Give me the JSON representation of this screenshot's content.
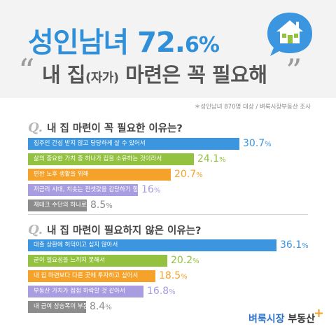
{
  "header": {
    "headline": "성인남녀 72.",
    "headline_pct": "6%",
    "subline_before": "내 집",
    "subline_small": "(자가)",
    "subline_after": " 마련은 꼭 필요해",
    "quote_open": "“",
    "quote_close": "”"
  },
  "source": "＊성인남녀 870명 대상 / 벼룩시장부동산 조사",
  "colors": {
    "blue": "#3b95df",
    "green": "#92c23f",
    "orange": "#f5a22b",
    "purple": "#a89de0",
    "gray": "#8c8c8c"
  },
  "chart_data": [
    {
      "type": "bar",
      "orientation": "horizontal",
      "q_mark": "Q.",
      "title": "내 집 마련이 꼭 필요한 이유는?",
      "categories": [
        "집주인 간섭 받지 않고 당당하게 살 수 있어서",
        "삶의 중요한 가치 중 하나가 집을 소유하는 것이라서",
        "편한 노후 생활을 위해",
        "저금리 시대, 치솟는 전셋값을 감당하기 힘들어서",
        "재테크 수단의 하나로 필요"
      ],
      "values": [
        30.7,
        24.1,
        20.7,
        16,
        8.5
      ],
      "value_labels": [
        "30.7",
        "24.1",
        "20.7",
        "16",
        "8.5"
      ],
      "unit": "%",
      "bar_colors": [
        "#3b95df",
        "#92c23f",
        "#f5a22b",
        "#a89de0",
        "#8c8c8c"
      ]
    },
    {
      "type": "bar",
      "orientation": "horizontal",
      "q_mark": "Q.",
      "title": "내 집 마련이 필요하지 않은 이유는?",
      "categories": [
        "대출 상환에 허덕이고 싶지 않아서",
        "굳이 필요성을 느끼지 못해서",
        "내 집 마련보다 다른 곳에 투자하고 싶어서",
        "부동산 가치가 점점 하락할 것 같아서",
        "내 급여 상승폭이 부동산 상승폭에 비해 너무 작아서"
      ],
      "values": [
        36.1,
        20.2,
        18.5,
        16.8,
        8.4
      ],
      "value_labels": [
        "36.1",
        "20.2",
        "18.5",
        "16.8",
        "8.4"
      ],
      "unit": "%",
      "bar_colors": [
        "#3b95df",
        "#92c23f",
        "#f5a22b",
        "#a89de0",
        "#8c8c8c"
      ]
    }
  ],
  "logo": {
    "part1": "벼룩시장",
    "part2": " 부동산",
    "plus": "+"
  }
}
